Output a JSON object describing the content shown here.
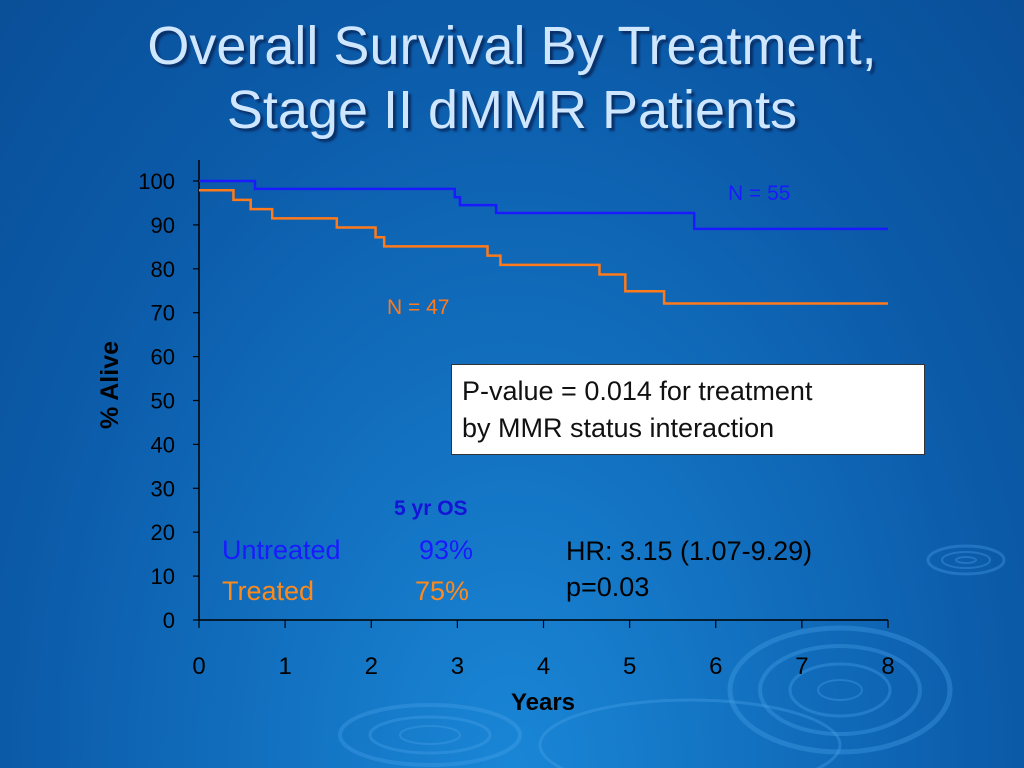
{
  "title": "Overall Survival By Treatment,\nStage II dMMR Patients",
  "colors": {
    "untreated": "#1a1aff",
    "treated": "#ff7a1a",
    "axis": "#000000"
  },
  "chart_data": {
    "type": "line",
    "title": "Overall Survival By Treatment, Stage II dMMR Patients",
    "xlabel": "Years",
    "ylabel": "% Alive",
    "xlim": [
      0,
      8
    ],
    "ylim": [
      0,
      100
    ],
    "xticks": [
      0,
      1,
      2,
      3,
      4,
      5,
      6,
      7,
      8
    ],
    "yticks": [
      0,
      10,
      20,
      30,
      40,
      50,
      60,
      70,
      80,
      90,
      100
    ],
    "step": true,
    "series": [
      {
        "label": "N = 55",
        "color": "#1a1aff",
        "x": [
          0,
          0.65,
          2.97,
          3.03,
          3.45,
          5.75,
          8.0
        ],
        "y": [
          100,
          98.2,
          96.3,
          94.5,
          92.7,
          89.1,
          89.1
        ]
      },
      {
        "label": "N = 47",
        "color": "#ff7a1a",
        "x": [
          0,
          0.4,
          0.6,
          0.85,
          1.6,
          2.05,
          2.15,
          3.35,
          3.5,
          4.65,
          4.95,
          5.4,
          8.0
        ],
        "y": [
          97.9,
          95.7,
          93.6,
          91.5,
          89.4,
          87.2,
          85.1,
          83.0,
          80.9,
          78.7,
          74.9,
          72.1,
          72.1
        ]
      }
    ]
  },
  "pvalue_lines": [
    "P-value = 0.014 for treatment",
    "by MMR status interaction"
  ],
  "os": {
    "header": "5 yr OS",
    "rows": [
      {
        "label": "Untreated",
        "value": "93%"
      },
      {
        "label": "Treated",
        "value": "75%"
      }
    ]
  },
  "hr_lines": [
    "HR: 3.15 (1.07-9.29)",
    "p=0.03"
  ]
}
